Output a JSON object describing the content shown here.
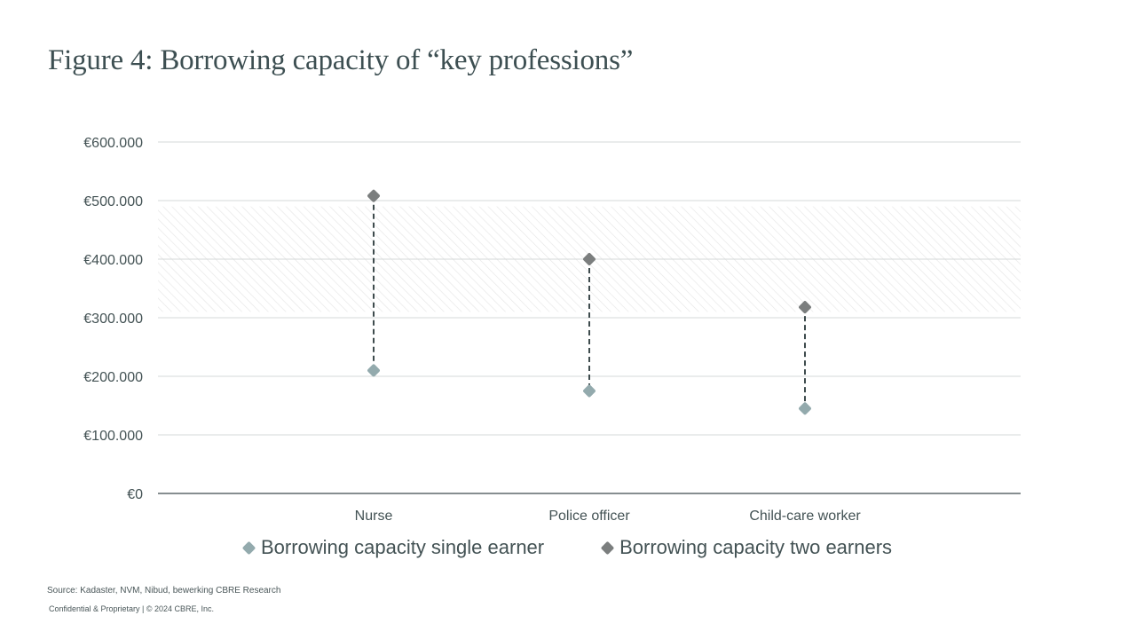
{
  "title": "Figure 4: Borrowing capacity of “key professions”",
  "chart_data": {
    "type": "scatter",
    "categories": [
      "Nurse",
      "Police officer",
      "Child-care worker"
    ],
    "series": [
      {
        "name": "Borrowing capacity single earner",
        "values": [
          210000,
          175000,
          145000
        ],
        "color": "#93aaad"
      },
      {
        "name": "Borrowing capacity two earners",
        "values": [
          508000,
          400000,
          318000
        ],
        "color": "#7b7e7e"
      }
    ],
    "yticks": [
      "€0",
      "€100.000",
      "€200.000",
      "€300.000",
      "€400.000",
      "€500.000",
      "€600.000"
    ],
    "ylim": [
      0,
      600000
    ],
    "ytick_step": 100000,
    "highlight_band": [
      310000,
      490000
    ],
    "grid": true,
    "legend_position": "bottom-center",
    "connector": "dashed line between single and two-earner values"
  },
  "footer": {
    "source": "Source: Kadaster, NVM, Nibud, bewerking CBRE Research",
    "confidential": "Confidential & Proprietary | © 2024 CBRE, Inc."
  }
}
